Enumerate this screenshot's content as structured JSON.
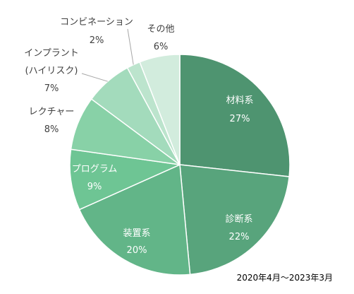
{
  "chart_data": {
    "type": "pie",
    "note": "2020年4月～2023年3月",
    "slices": [
      {
        "label": "材料系",
        "value": 27,
        "pct_label": "27%",
        "color": "#4e9470"
      },
      {
        "label": "診断系",
        "value": 22,
        "pct_label": "22%",
        "color": "#58a47c"
      },
      {
        "label": "装置系",
        "value": 20,
        "pct_label": "20%",
        "color": "#62b588"
      },
      {
        "label": "プログラム",
        "value": 9,
        "pct_label": "9%",
        "color": "#6ec594"
      },
      {
        "label": "レクチャー",
        "value": 8,
        "pct_label": "8%",
        "color": "#88d1a7"
      },
      {
        "label": "インプラント",
        "label_line2": "(ハイリスク)",
        "value": 7,
        "pct_label": "7%",
        "color": "#a3dbbc"
      },
      {
        "label": "コンビネーション",
        "value": 2,
        "pct_label": "2%",
        "color": "#bce4cd"
      },
      {
        "label": "その他",
        "value": 6,
        "pct_label": "6%",
        "color": "#d2ecdd"
      }
    ]
  }
}
